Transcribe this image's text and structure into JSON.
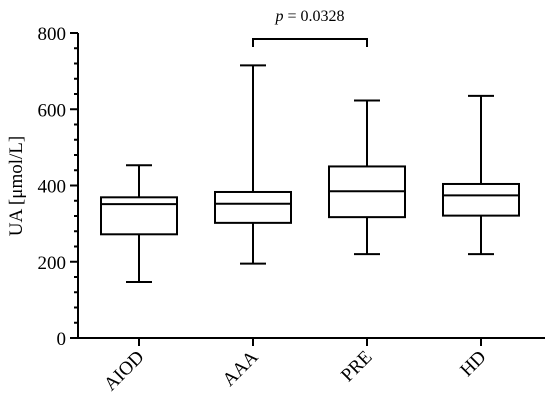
{
  "chart_data": {
    "type": "boxplot",
    "ylabel": "UA [μmol/L]",
    "ylim": [
      0,
      800
    ],
    "yticks": [
      0,
      200,
      400,
      600,
      800
    ],
    "grid": false,
    "categories": [
      "AIOD",
      "AAA",
      "PRE",
      "HD"
    ],
    "boxes": [
      {
        "category": "AIOD",
        "min": 147,
        "q1": 272,
        "median": 351,
        "q3": 369,
        "max": 453
      },
      {
        "category": "AAA",
        "min": 195,
        "q1": 302,
        "median": 352,
        "q3": 383,
        "max": 715
      },
      {
        "category": "PRE",
        "min": 220,
        "q1": 317,
        "median": 385,
        "q3": 450,
        "max": 623
      },
      {
        "category": "HD",
        "min": 220,
        "q1": 321,
        "median": 374,
        "q3": 404,
        "max": 635
      }
    ],
    "annotations": [
      {
        "type": "significance-bracket",
        "from": "AAA",
        "to": "PRE",
        "p_symbol": "p",
        "p_text": " = 0.0328"
      }
    ]
  }
}
